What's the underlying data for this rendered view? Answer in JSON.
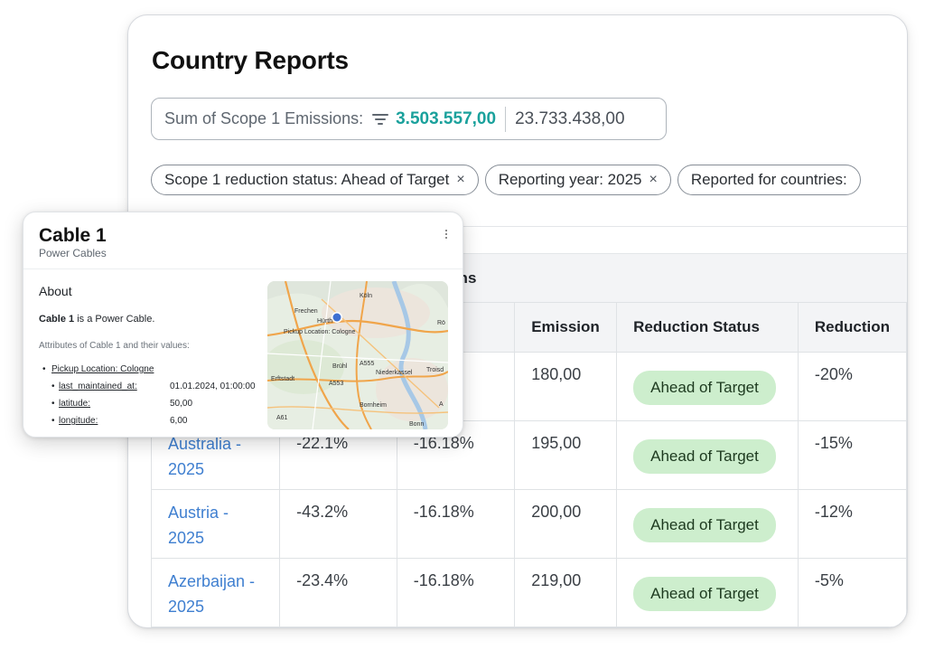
{
  "page": {
    "title": "Country Reports",
    "summary": {
      "label": "Sum of Scope 1 Emissions:",
      "value": "3.503.557,00",
      "total": "23.733.438,00",
      "value_color": "#1aa19c"
    },
    "filters": [
      {
        "label": "Scope 1 reduction status: Ahead of Target",
        "close": "×"
      },
      {
        "label": "Reporting year: 2025",
        "close": "×"
      },
      {
        "label": "Reported for countries:",
        "close": ""
      }
    ],
    "group_header": "sions",
    "columns": [
      "",
      "",
      "ge PY",
      "Emission",
      "Reduction Status",
      "Reduction"
    ],
    "rows": [
      {
        "country_line1": "",
        "country_line2": "",
        "change": "",
        "change_py": "3%",
        "emission": "180,00",
        "status": "Ahead of Target",
        "reduction": "-20%"
      },
      {
        "country_line1": "Australia -",
        "country_line2": "2025",
        "change": "-22.1%",
        "change_py": "-16.18%",
        "emission": "195,00",
        "status": "Ahead of Target",
        "reduction": "-15%"
      },
      {
        "country_line1": "Austria -",
        "country_line2": "2025",
        "change": "-43.2%",
        "change_py": "-16.18%",
        "emission": "200,00",
        "status": "Ahead of Target",
        "reduction": "-12%"
      },
      {
        "country_line1": "Azerbaijan -",
        "country_line2": "2025",
        "change": "-23.4%",
        "change_py": "-16.18%",
        "emission": "219,00",
        "status": "Ahead of Target",
        "reduction": "-5%"
      }
    ],
    "badge_color": "#cdeecd",
    "link_color": "#3f7fd0"
  },
  "popup": {
    "title": "Cable 1",
    "subtitle": "Power Cables",
    "menu_icon": "more-vertical-icon",
    "section": "About",
    "desc_name": "Cable 1",
    "desc_rest": " is a Power Cable.",
    "attr_caption": "Attributes of Cable 1 and their values:",
    "attributes": [
      {
        "key": "Pickup Location: Cologne",
        "value": "",
        "level": 0
      },
      {
        "key": "last_maintained_at:",
        "value": "01.01.2024, 01:00:00",
        "level": 1
      },
      {
        "key": "latitude:",
        "value": "50,00",
        "level": 1
      },
      {
        "key": "longitude:",
        "value": "6,00",
        "level": 1
      }
    ],
    "map": {
      "labels": [
        "Köln",
        "Frechen",
        "Hürth",
        "Pickup Location: Cologne",
        "Rö",
        "Erftstadt",
        "Brühl",
        "A555",
        "Niederkassel",
        "Troisd",
        "A553",
        "Bornheim",
        "Bonn",
        "A61",
        "A"
      ]
    }
  }
}
